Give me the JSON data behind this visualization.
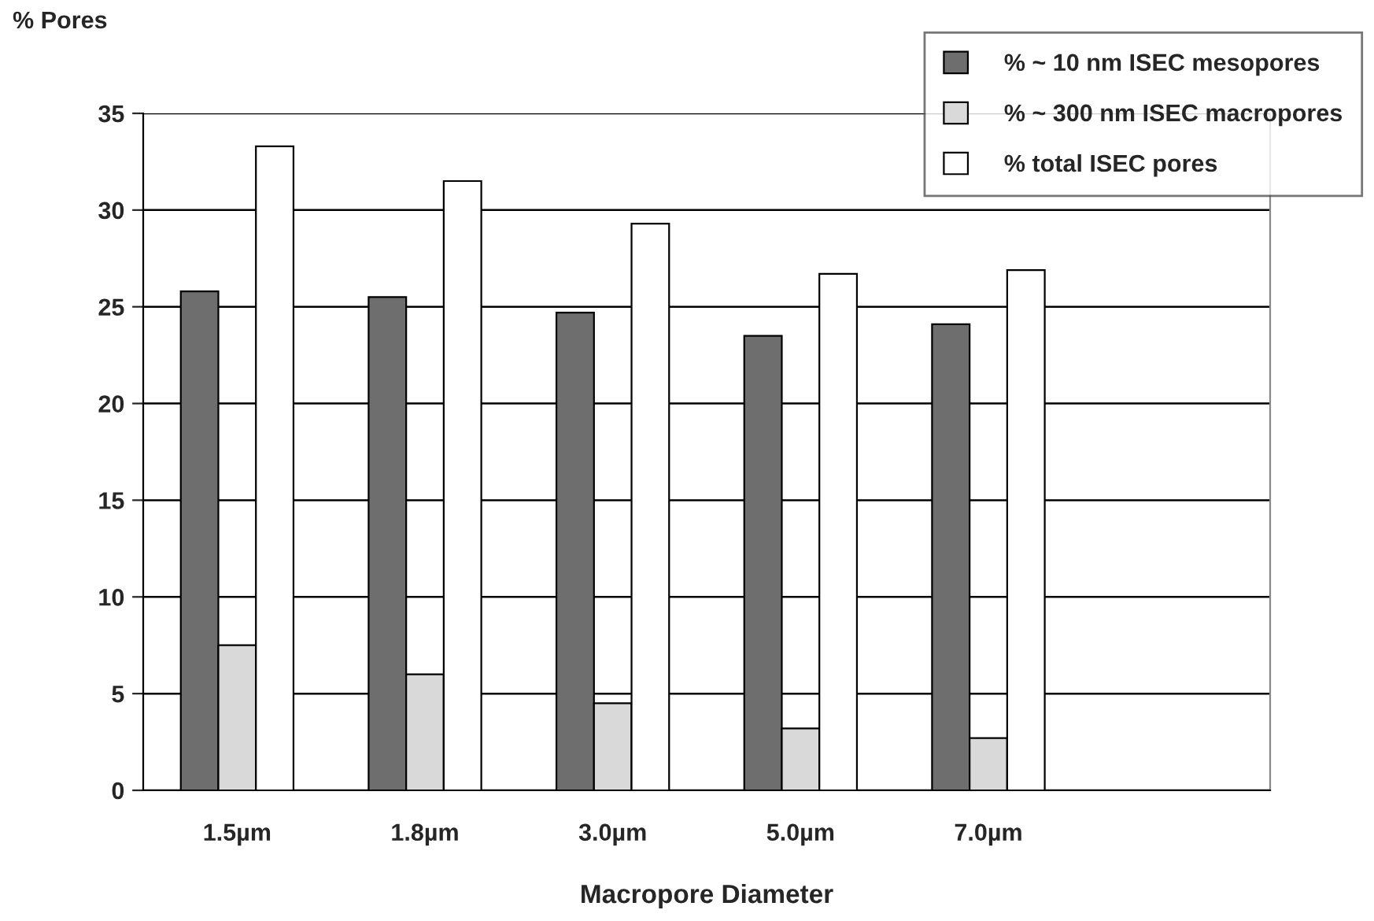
{
  "chart_data": {
    "type": "bar",
    "categories": [
      "1.5µm",
      "1.8µm",
      "3.0µm",
      "5.0µm",
      "7.0µm",
      null
    ],
    "series": [
      {
        "name": "% ~ 10 nm ISEC mesopores",
        "color": "#6e6e6e",
        "values": [
          25.8,
          25.5,
          24.7,
          23.5,
          24.1,
          null
        ]
      },
      {
        "name": "% ~ 300 nm ISEC macropores",
        "color": "#d9d9d9",
        "values": [
          7.5,
          6.0,
          4.5,
          3.2,
          2.7,
          null
        ]
      },
      {
        "name": "% total ISEC pores",
        "color": "#ffffff",
        "values": [
          33.3,
          31.5,
          29.3,
          26.7,
          26.9,
          null
        ]
      }
    ],
    "ylabel": "% Pores",
    "xlabel": "Macropore Diameter",
    "ylim": [
      0,
      35
    ],
    "yticks": [
      0,
      5,
      10,
      15,
      20,
      25,
      30,
      35
    ],
    "grid": "y",
    "legend": "top right"
  }
}
